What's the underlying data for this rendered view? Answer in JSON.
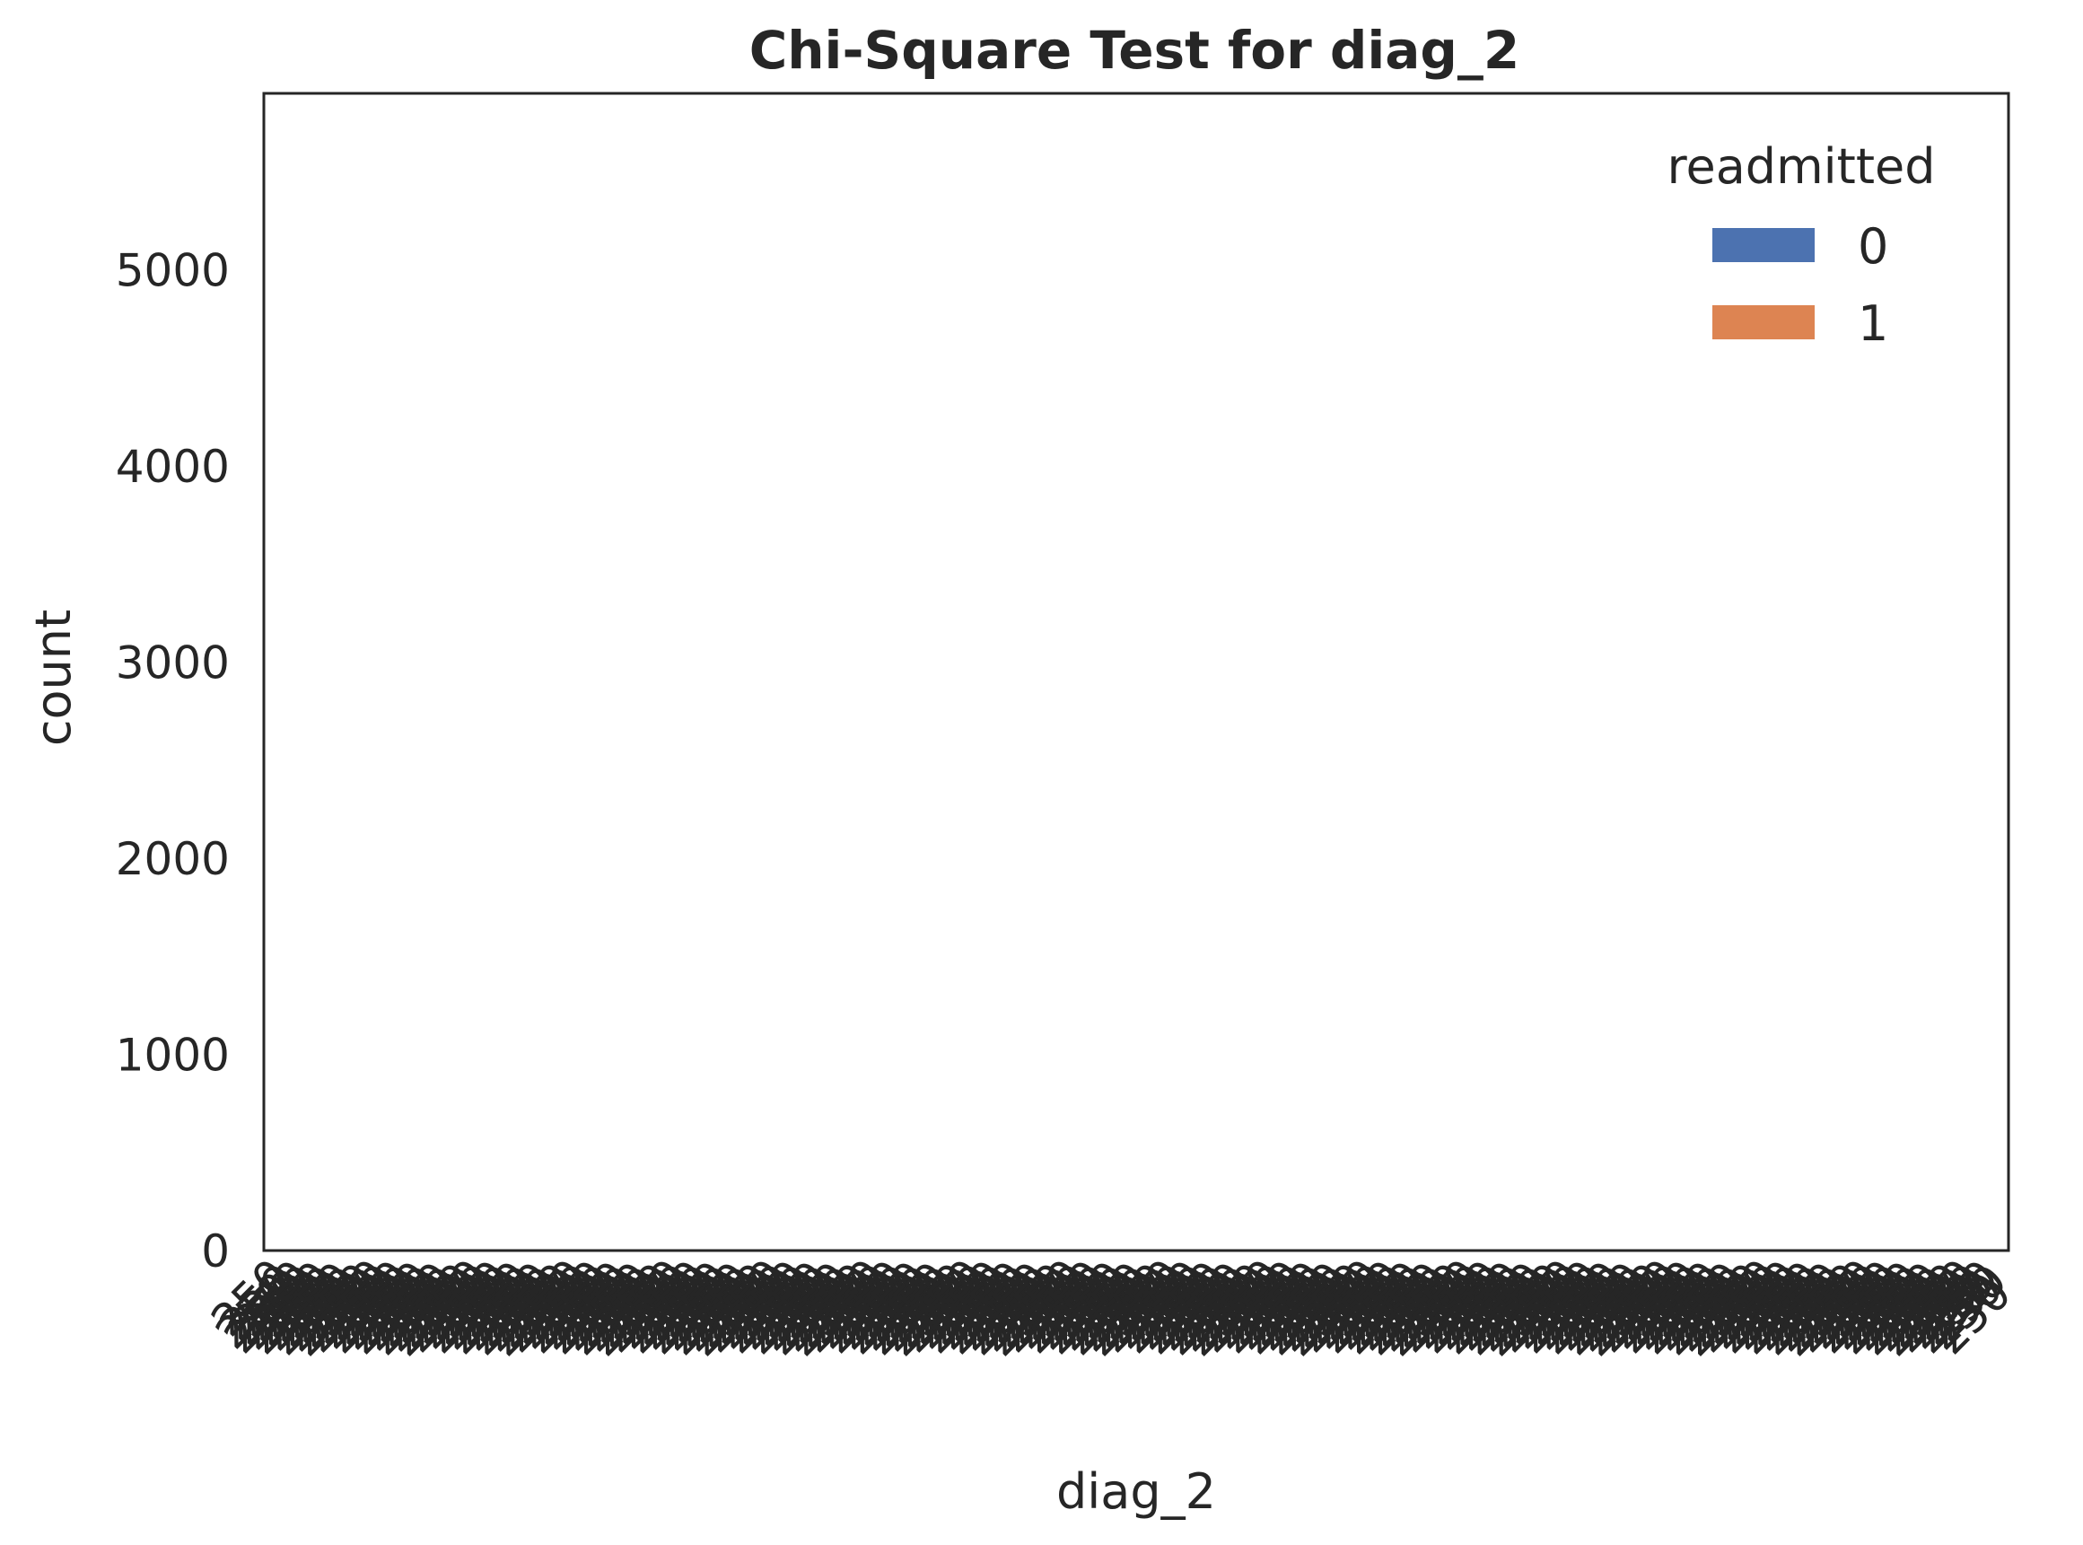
{
  "chart_data": {
    "type": "bar",
    "title": "Chi-Square Test for diag_2",
    "xlabel": "diag_2",
    "ylabel": "count",
    "ylim": [
      0,
      5900
    ],
    "yticks": [
      0,
      1000,
      2000,
      3000,
      4000,
      5000
    ],
    "ytick_labels": [
      "0",
      "1000",
      "2000",
      "3000",
      "4000",
      "5000"
    ],
    "grid": false,
    "legend": {
      "title": "readmitted",
      "placement": "top-right",
      "entries": [
        {
          "label": "0",
          "color": "#4c72b0"
        },
        {
          "label": "1",
          "color": "#dd8452"
        }
      ]
    },
    "x_tick_labels_overlapping": true,
    "x_tick_rotation_deg": 45,
    "x_tick_repeat_glyph": "250",
    "x_tick_repeat_count": 400,
    "series": [
      {
        "name": "0",
        "values": []
      },
      {
        "name": "1",
        "values": []
      }
    ]
  }
}
